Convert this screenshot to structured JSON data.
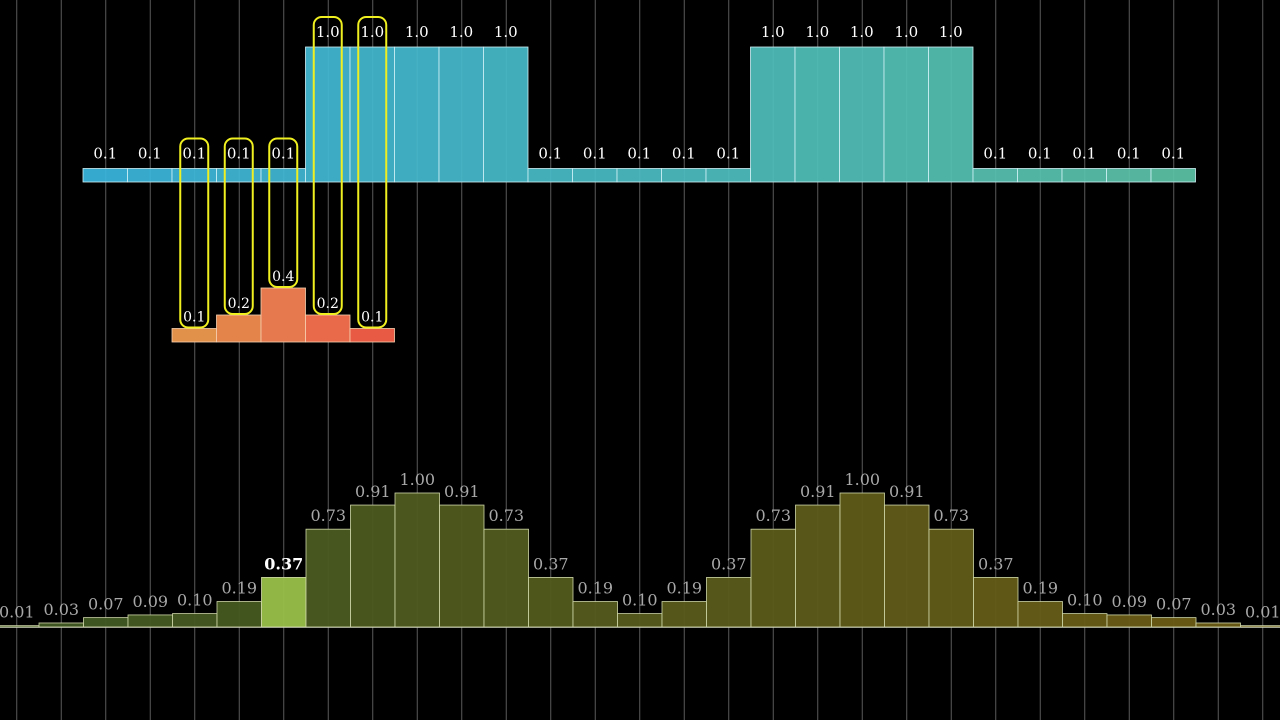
{
  "signal": {
    "values": [
      0.1,
      0.1,
      0.1,
      0.1,
      0.1,
      1.0,
      1.0,
      1.0,
      1.0,
      1.0,
      0.1,
      0.1,
      0.1,
      0.1,
      0.1,
      1.0,
      1.0,
      1.0,
      1.0,
      1.0,
      0.1,
      0.1,
      0.1,
      0.1,
      0.1
    ],
    "labels": [
      "0.1",
      "0.1",
      "0.1",
      "0.1",
      "0.1",
      "1.0",
      "1.0",
      "1.0",
      "1.0",
      "1.0",
      "0.1",
      "0.1",
      "0.1",
      "0.1",
      "0.1",
      "1.0",
      "1.0",
      "1.0",
      "1.0",
      "1.0",
      "0.1",
      "0.1",
      "0.1",
      "0.1",
      "0.1"
    ],
    "color_start": "#3bb7df",
    "color_end": "#5cc4a8",
    "highlighted": [
      2,
      3,
      4,
      5,
      6
    ]
  },
  "kernel": {
    "values": [
      0.1,
      0.2,
      0.4,
      0.2,
      0.1
    ],
    "labels": [
      "0.1",
      "0.2",
      "0.4",
      "0.2",
      "0.1"
    ],
    "colors": [
      "#e2914a",
      "#e4844a",
      "#e67a4e",
      "#e86a4a",
      "#e85a44"
    ],
    "highlight_color": "#f0f020"
  },
  "result": {
    "values": [
      0.01,
      0.03,
      0.07,
      0.09,
      0.1,
      0.19,
      0.37,
      0.73,
      0.91,
      1.0,
      0.91,
      0.73,
      0.37,
      0.19,
      0.1,
      0.19,
      0.37,
      0.73,
      0.91,
      1.0,
      0.91,
      0.73,
      0.37,
      0.19,
      0.1,
      0.09,
      0.07,
      0.03,
      0.01
    ],
    "labels": [
      "0.01",
      "0.03",
      "0.07",
      "0.09",
      "0.10",
      "0.19",
      "0.37",
      "0.73",
      "0.91",
      "1.00",
      "0.91",
      "0.73",
      "0.37",
      "0.19",
      "0.10",
      "0.19",
      "0.37",
      "0.73",
      "0.91",
      "1.00",
      "0.91",
      "0.73",
      "0.37",
      "0.19",
      "0.10",
      "0.09",
      "0.07",
      "0.03",
      "0.01"
    ],
    "active_index": 6,
    "color_start": "#3f5a24",
    "color_end": "#6e5c14",
    "active_color": "#9ac04a"
  }
}
